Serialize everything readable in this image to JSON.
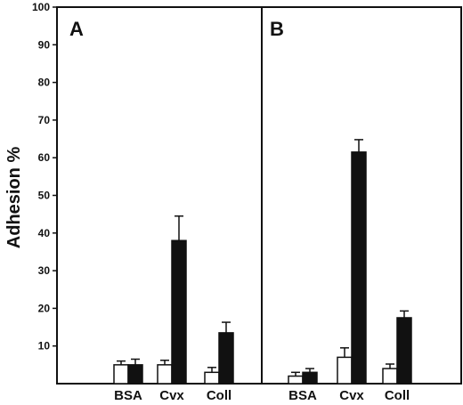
{
  "chart_data": {
    "type": "bar",
    "ylabel": "Adhesion %",
    "ylim": [
      0,
      100
    ],
    "yticks": [
      10,
      20,
      30,
      40,
      50,
      60,
      70,
      80,
      90,
      100
    ],
    "series_colors": [
      "#ffffff",
      "#111111"
    ],
    "panels": [
      {
        "label": "A",
        "categories": [
          "BSA",
          "Cvx",
          "Coll"
        ],
        "series": [
          {
            "values": [
              5,
              5,
              3
            ],
            "errors": [
              1.0,
              1.2,
              1.3
            ]
          },
          {
            "values": [
              5,
              38,
              13.5
            ],
            "errors": [
              1.5,
              6.5,
              2.8
            ]
          }
        ]
      },
      {
        "label": "B",
        "categories": [
          "BSA",
          "Cvx",
          "Coll"
        ],
        "series": [
          {
            "values": [
              2,
              7,
              4
            ],
            "errors": [
              1.0,
              2.5,
              1.2
            ]
          },
          {
            "values": [
              3,
              61.5,
              17.5
            ],
            "errors": [
              1.0,
              3.3,
              1.8
            ]
          }
        ]
      }
    ]
  }
}
